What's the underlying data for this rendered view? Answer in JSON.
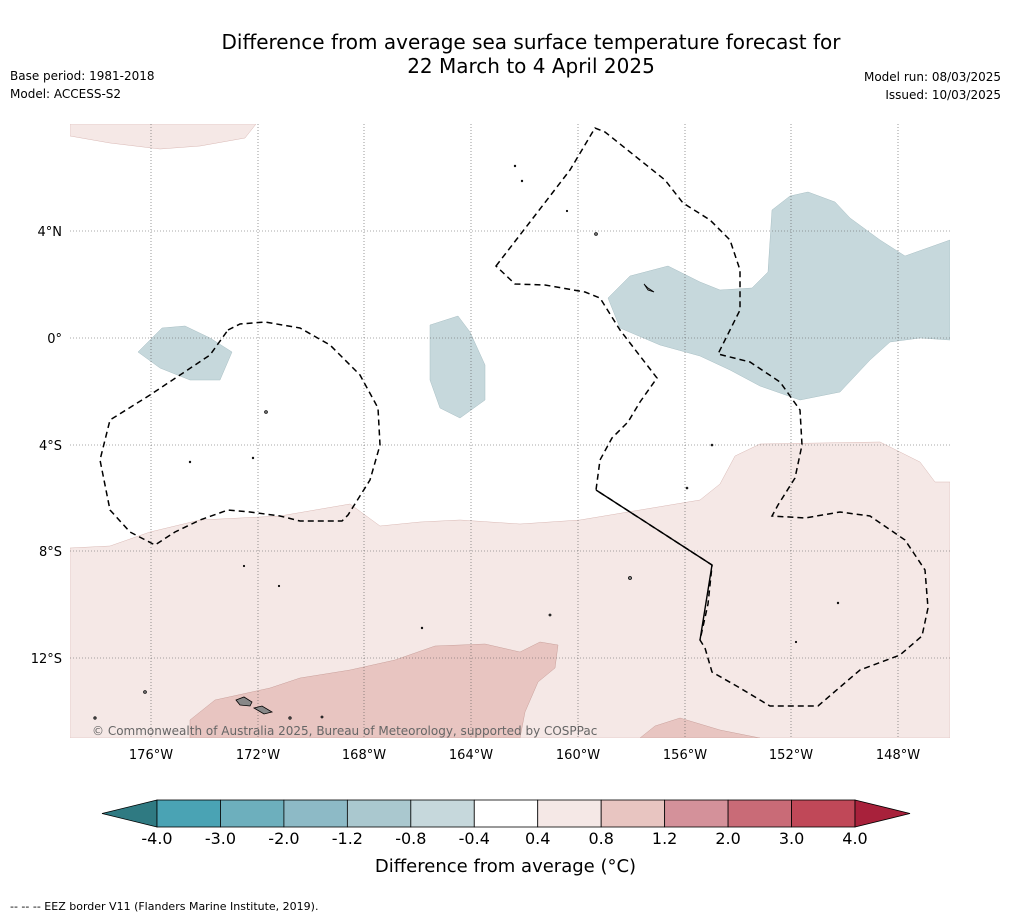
{
  "title_line1": "Difference from average sea surface temperature forecast for",
  "title_line2": "22 March to 4 April 2025",
  "base_period": "Base period: 1981-2018",
  "model": "Model: ACCESS-S2",
  "model_run": "Model run: 08/03/2025",
  "issued": "Issued: 10/03/2025",
  "copyright": "© Commonwealth of Australia 2025, Bureau of Meteorology, supported by COSPPac",
  "footnote": "--  --  -- EEZ border V11 (Flanders Marine Institute, 2019).",
  "lat_labels": [
    "4°N",
    "0°",
    "4°S",
    "8°S",
    "12°S"
  ],
  "lon_labels": [
    "176°W",
    "172°W",
    "168°W",
    "164°W",
    "160°W",
    "156°W",
    "152°W",
    "148°W"
  ],
  "colorbar": {
    "ticks": [
      "-4.0",
      "-3.0",
      "-2.0",
      "-1.2",
      "-0.8",
      "-0.4",
      "0.4",
      "0.8",
      "1.2",
      "2.0",
      "3.0",
      "4.0"
    ],
    "colors": [
      "#2f7a82",
      "#4aa3b4",
      "#6dafbd",
      "#8dbac6",
      "#aac8cf",
      "#c6d8dc",
      "#ffffff",
      "#f5e8e6",
      "#e8c5c1",
      "#d4919a",
      "#c96b77",
      "#c04858",
      "#a8213b"
    ],
    "label": "Difference from average (°C)"
  }
}
